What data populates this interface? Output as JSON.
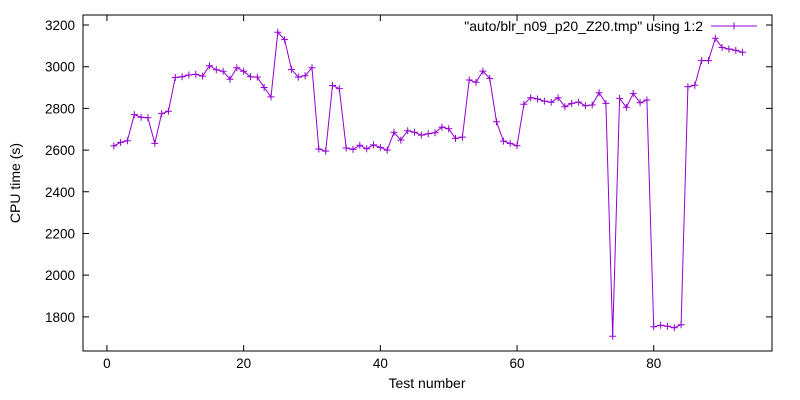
{
  "figure": {
    "background": "#ffffff",
    "border_color": "#000000",
    "text_color": "#000000"
  },
  "chart_data": {
    "type": "line",
    "style": "linespoints",
    "marker": "plus",
    "title": "",
    "xlabel": "Test number",
    "ylabel": "CPU time (s)",
    "x_ticks": [
      0,
      20,
      40,
      60,
      80
    ],
    "y_ticks": [
      1800,
      2000,
      2200,
      2400,
      2600,
      2800,
      3000,
      3200
    ],
    "xlim": [
      -3.5,
      97.3
    ],
    "ylim": [
      1636,
      3248
    ],
    "grid": false,
    "legend_position": "top-right-inside",
    "series": [
      {
        "name": "\"auto/blr_n09_p20_Z20.tmp\" using 1:2",
        "color": "#9400d3",
        "x_start": 1,
        "values": [
          2620,
          2637,
          2645,
          2770,
          2757,
          2755,
          2632,
          2775,
          2786,
          2948,
          2952,
          2960,
          2963,
          2955,
          3005,
          2985,
          2978,
          2940,
          2995,
          2978,
          2952,
          2950,
          2900,
          2855,
          3165,
          3130,
          2987,
          2950,
          2957,
          2995,
          2605,
          2595,
          2910,
          2895,
          2610,
          2603,
          2623,
          2606,
          2625,
          2613,
          2600,
          2685,
          2648,
          2693,
          2685,
          2672,
          2678,
          2683,
          2710,
          2702,
          2656,
          2662,
          2936,
          2925,
          2979,
          2944,
          2736,
          2643,
          2632,
          2621,
          2820,
          2851,
          2845,
          2835,
          2829,
          2851,
          2808,
          2824,
          2830,
          2813,
          2816,
          2875,
          2824,
          1707,
          2848,
          2805,
          2872,
          2827,
          2840,
          1752,
          1760,
          1755,
          1748,
          1762,
          2904,
          2911,
          3029,
          3029,
          3136,
          3092,
          3085,
          3078,
          3069
        ]
      }
    ]
  }
}
